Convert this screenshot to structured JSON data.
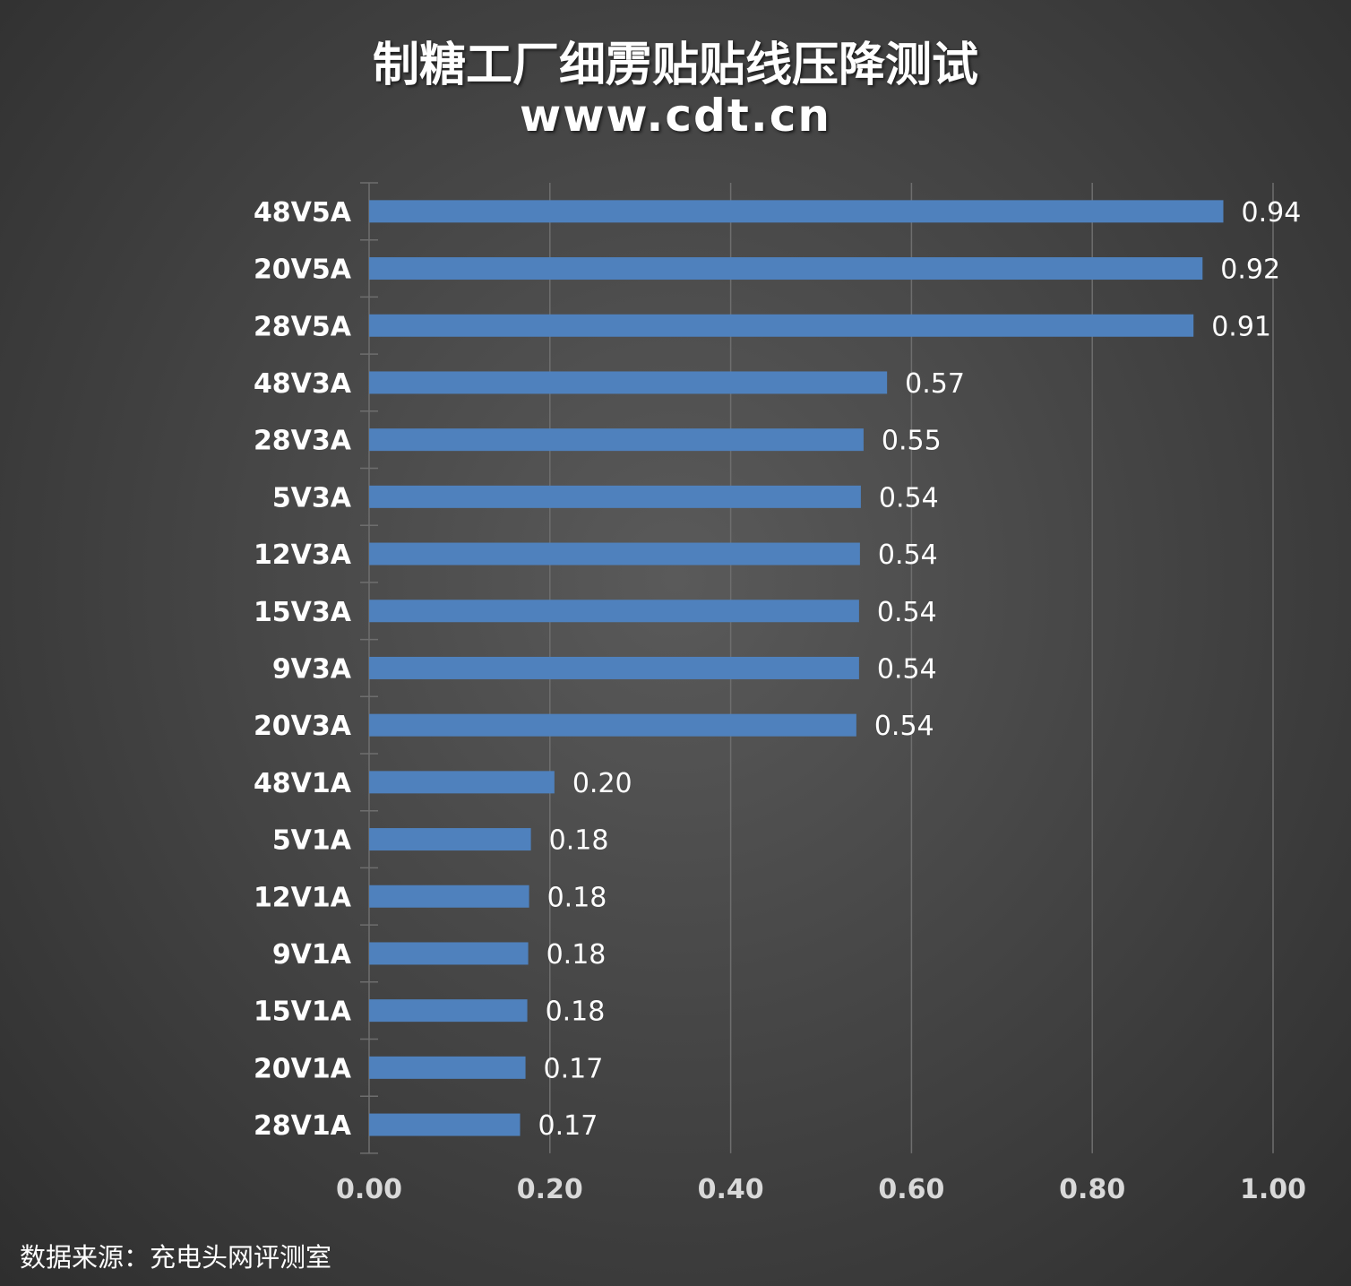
{
  "colors": {
    "bar": "#4f81bd",
    "gridline": "#6e6e6e",
    "text": "#ffffff",
    "axis_tick_text": "#d9d9d9"
  },
  "chart_data": {
    "type": "bar",
    "orientation": "horizontal",
    "title": "制糖工厂细雳贴贴线压降测试",
    "subtitle": "www.cdt.cn",
    "categories": [
      "48V5A",
      "20V5A",
      "28V5A",
      "48V3A",
      "28V3A",
      "5V3A",
      "12V3A",
      "15V3A",
      "9V3A",
      "20V3A",
      "48V1A",
      "5V1A",
      "12V1A",
      "9V1A",
      "15V1A",
      "20V1A",
      "28V1A"
    ],
    "values": [
      0.945,
      0.922,
      0.912,
      0.573,
      0.547,
      0.544,
      0.543,
      0.542,
      0.542,
      0.539,
      0.205,
      0.179,
      0.177,
      0.176,
      0.175,
      0.173,
      0.167
    ],
    "data_labels": [
      "0.94",
      "0.92",
      "0.91",
      "0.57",
      "0.55",
      "0.54",
      "0.54",
      "0.54",
      "0.54",
      "0.54",
      "0.20",
      "0.18",
      "0.18",
      "0.18",
      "0.18",
      "0.17",
      "0.17"
    ],
    "xlim": [
      0,
      1.0
    ],
    "xticks": [
      "0.00",
      "0.20",
      "0.40",
      "0.60",
      "0.80",
      "1.00"
    ],
    "grid": "vertical"
  },
  "source": "数据来源：充电头网评测室"
}
